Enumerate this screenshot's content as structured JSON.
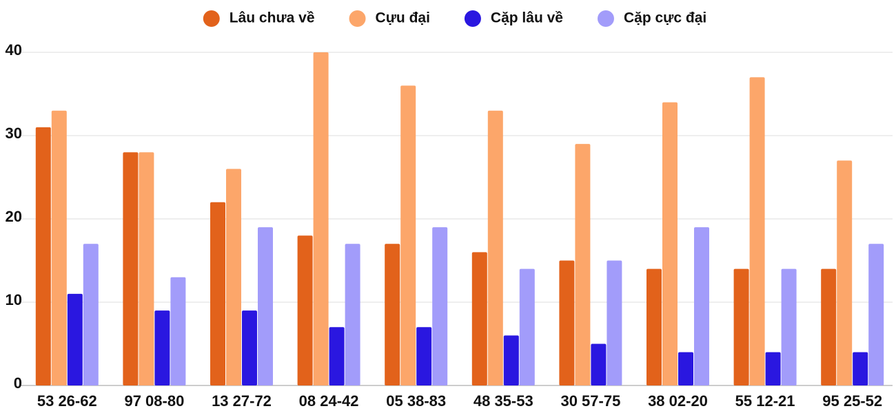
{
  "chart_data": {
    "type": "bar",
    "categories": [
      "53 26-62",
      "97 08-80",
      "13 27-72",
      "08 24-42",
      "05 38-83",
      "48 35-53",
      "30 57-75",
      "38 02-20",
      "55 12-21",
      "95 25-52"
    ],
    "series": [
      {
        "name": "Lâu chưa về",
        "color": "#e2621b",
        "values": [
          31,
          28,
          22,
          18,
          17,
          16,
          15,
          14,
          14,
          14
        ]
      },
      {
        "name": "Cựu đại",
        "color": "#fca66a",
        "values": [
          33,
          28,
          26,
          40,
          36,
          33,
          29,
          34,
          37,
          27
        ]
      },
      {
        "name": "Cặp lâu về",
        "color": "#2a17e0",
        "values": [
          11,
          9,
          9,
          7,
          7,
          6,
          5,
          4,
          4,
          4
        ]
      },
      {
        "name": "Cặp cực đại",
        "color": "#a29cfa",
        "values": [
          17,
          13,
          19,
          17,
          19,
          14,
          15,
          19,
          14,
          17
        ]
      }
    ],
    "ylim": [
      0,
      40
    ],
    "yticks": [
      0,
      10,
      20,
      30,
      40
    ],
    "grid": true,
    "legend": "top"
  }
}
